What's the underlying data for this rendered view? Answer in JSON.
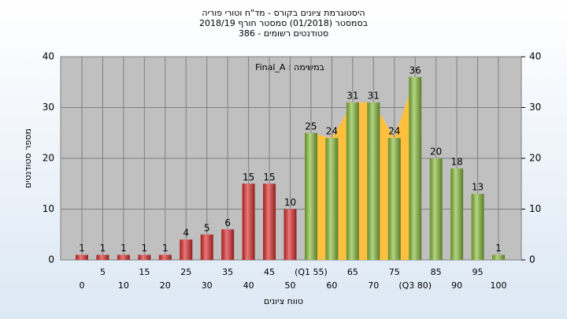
{
  "chart_data": {
    "type": "bar",
    "title": [
      "היסטוגרמת ציונים בקורס - מד\"ח וטורי פוריה",
      "בסמסטר  (01/2018)  סמסטר חורף 2018/19",
      "סטודנטים רשומים - 386"
    ],
    "annotation": "במשימה : Final_A",
    "x_label": "טווח ציונים",
    "y_label": "מספר סטודנטים",
    "categories": [
      "0",
      "5",
      "10",
      "15",
      "20",
      "25",
      "30",
      "35",
      "40",
      "45",
      "50",
      "(Q1 55)",
      "60",
      "65",
      "70",
      "75",
      "(Q3 80)",
      "85",
      "90",
      "95",
      "100"
    ],
    "values": [
      1,
      1,
      1,
      1,
      1,
      4,
      5,
      6,
      15,
      15,
      10,
      25,
      24,
      31,
      31,
      24,
      36,
      20,
      18,
      13,
      1
    ],
    "colors": [
      "#e03030",
      "#e03030",
      "#e03030",
      "#e03030",
      "#e03030",
      "#e03030",
      "#e03030",
      "#e03030",
      "#e03030",
      "#e03030",
      "#e03030",
      "#8cc040",
      "#8cc040",
      "#8cc040",
      "#8cc040",
      "#8cc040",
      "#8cc040",
      "#8cc040",
      "#8cc040",
      "#8cc040",
      "#8cc040"
    ],
    "band_color": "#ffc040",
    "band_range": [
      11,
      16
    ],
    "ylim": [
      0,
      40
    ],
    "yticks": [
      0,
      10,
      20,
      30,
      40
    ],
    "y2lim": [
      0,
      40
    ],
    "y2ticks": [
      0,
      10,
      20,
      30,
      40
    ],
    "grid": true
  }
}
